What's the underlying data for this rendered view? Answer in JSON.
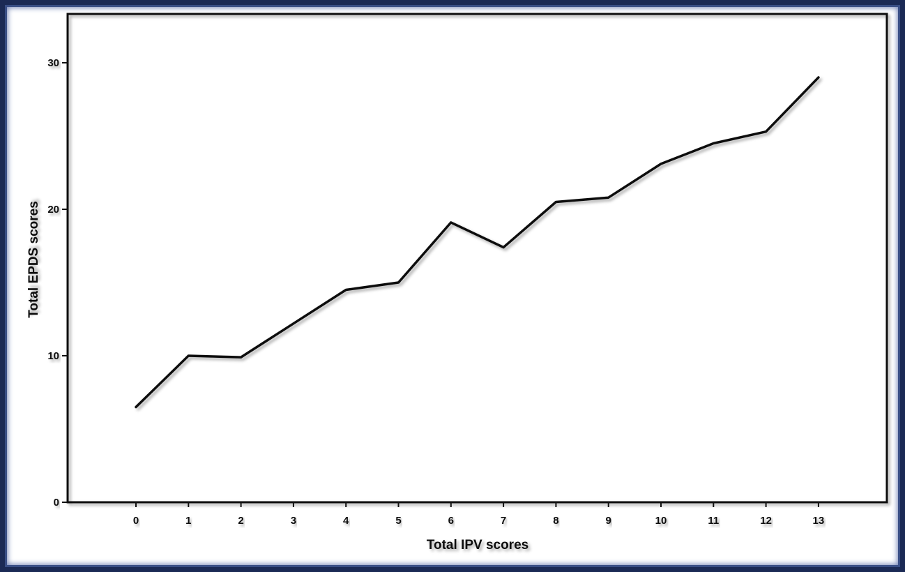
{
  "chart_data": {
    "type": "line",
    "title": "",
    "xlabel": "Total IPV scores",
    "ylabel": "Total EPDS scores",
    "x": [
      0,
      1,
      2,
      3,
      4,
      5,
      6,
      7,
      8,
      9,
      10,
      11,
      12,
      13
    ],
    "series": [
      {
        "values": [
          6.5,
          10.0,
          9.9,
          12.2,
          14.5,
          15.0,
          19.1,
          17.4,
          20.5,
          20.8,
          23.1,
          24.5,
          25.3,
          29.0
        ]
      }
    ],
    "xticks": [
      "0",
      "1",
      "2",
      "3",
      "4",
      "5",
      "6",
      "7",
      "8",
      "9",
      "10",
      "11",
      "12",
      "13"
    ],
    "yticks": [
      "0",
      "10",
      "20",
      "30"
    ],
    "ylim": [
      0,
      33
    ],
    "grid": false,
    "legend": "none",
    "colors": {
      "line": "#111111",
      "frame_border": "#1b2a55",
      "background": "#ffffff"
    }
  }
}
